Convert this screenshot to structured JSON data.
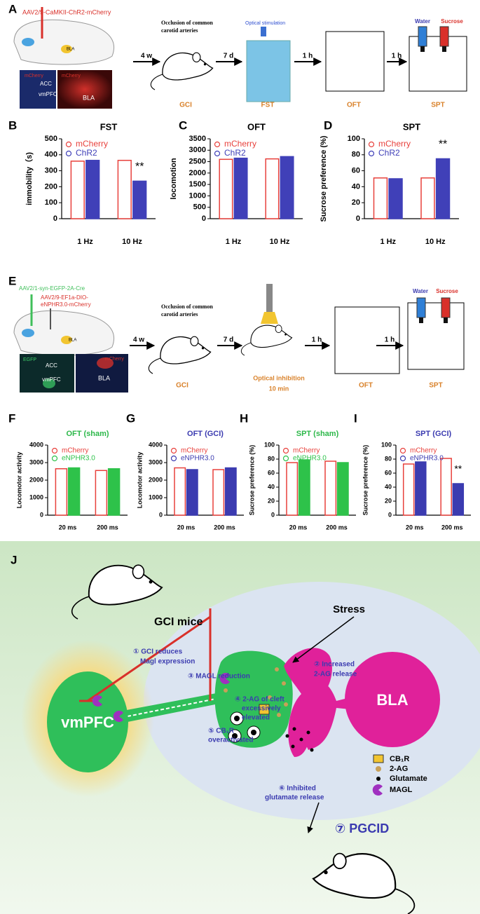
{
  "chart_data": [
    {
      "type": "bar",
      "title": "FST",
      "title_color": "#000000",
      "ylabel": "immobility（s)",
      "categories": [
        "1 Hz",
        "10 Hz"
      ],
      "series": [
        {
          "name": "mCherry",
          "color": "#e8413c",
          "hollow": true,
          "values": [
            360,
            365
          ]
        },
        {
          "name": "ChR2",
          "color": "#4040b8",
          "hollow": false,
          "values": [
            365,
            235
          ]
        }
      ],
      "ylim": [
        0,
        500
      ],
      "yticks": [
        0,
        100,
        200,
        300,
        400,
        500
      ],
      "annotation": "**"
    },
    {
      "type": "bar",
      "title": "OFT",
      "title_color": "#000000",
      "ylabel": "locomotion",
      "categories": [
        "1 Hz",
        "10 Hz"
      ],
      "series": [
        {
          "name": "mCherry",
          "color": "#e8413c",
          "hollow": true,
          "values": [
            2600,
            2620
          ]
        },
        {
          "name": "ChR2",
          "color": "#4040b8",
          "hollow": false,
          "values": [
            2650,
            2720
          ]
        }
      ],
      "ylim": [
        0,
        3500
      ],
      "yticks": [
        0,
        500,
        1000,
        1500,
        2000,
        2500,
        3000,
        3500
      ]
    },
    {
      "type": "bar",
      "title": "SPT",
      "title_color": "#000000",
      "ylabel": "Sucrose preference (%)",
      "categories": [
        "1 Hz",
        "10 Hz"
      ],
      "series": [
        {
          "name": "mCherry",
          "color": "#e8413c",
          "hollow": true,
          "values": [
            51,
            51
          ]
        },
        {
          "name": "ChR2",
          "color": "#4040b8",
          "hollow": false,
          "values": [
            50,
            75
          ]
        }
      ],
      "ylim": [
        0,
        100
      ],
      "yticks": [
        0,
        20,
        40,
        60,
        80,
        100
      ],
      "annotation": "**"
    },
    {
      "type": "bar",
      "title": "OFT (sham)",
      "title_color": "#2db84a",
      "ylabel": "Locomotor activity",
      "categories": [
        "20 ms",
        "200 ms"
      ],
      "series": [
        {
          "name": "mCherry",
          "color": "#e8413c",
          "hollow": true,
          "values": [
            2650,
            2550
          ]
        },
        {
          "name": "eNPHR3.0",
          "color": "#2ec24a",
          "hollow": false,
          "values": [
            2700,
            2650
          ]
        }
      ],
      "ylim": [
        0,
        4000
      ],
      "yticks": [
        0,
        1000,
        2000,
        3000,
        4000
      ]
    },
    {
      "type": "bar",
      "title": "OFT (GCI)",
      "title_color": "#3b3bb0",
      "ylabel": "Locomotor activity",
      "categories": [
        "20 ms",
        "200 ms"
      ],
      "series": [
        {
          "name": "mCherry",
          "color": "#e8413c",
          "hollow": true,
          "values": [
            2700,
            2600
          ]
        },
        {
          "name": "eNPHR3.0",
          "color": "#3b3bb0",
          "hollow": false,
          "values": [
            2600,
            2700
          ]
        }
      ],
      "ylim": [
        0,
        4000
      ],
      "yticks": [
        0,
        1000,
        2000,
        3000,
        4000
      ]
    },
    {
      "type": "bar",
      "title": "SPT (sham)",
      "title_color": "#2db84a",
      "ylabel": "Sucrose preference (%)",
      "categories": [
        "20 ms",
        "200 ms"
      ],
      "series": [
        {
          "name": "mCherry",
          "color": "#e8413c",
          "hollow": true,
          "values": [
            75,
            77
          ]
        },
        {
          "name": "eNPHR3.0",
          "color": "#2ec24a",
          "hollow": false,
          "values": [
            79,
            75
          ]
        }
      ],
      "ylim": [
        0,
        100
      ],
      "yticks": [
        0,
        20,
        40,
        60,
        80,
        100
      ]
    },
    {
      "type": "bar",
      "title": "SPT (GCI)",
      "title_color": "#3b3bb0",
      "ylabel": "Sucrose preference (%)",
      "categories": [
        "20 ms",
        "200 ms"
      ],
      "series": [
        {
          "name": "mCherry",
          "color": "#e8413c",
          "hollow": true,
          "values": [
            73,
            81
          ]
        },
        {
          "name": "eNPHR3.0",
          "color": "#3b3bb0",
          "hollow": false,
          "values": [
            76,
            45
          ]
        }
      ],
      "ylim": [
        0,
        100
      ],
      "yticks": [
        0,
        20,
        40,
        60,
        80,
        100
      ],
      "annotation": "**"
    }
  ],
  "figure": {
    "panel_letters": [
      "A",
      "B",
      "C",
      "D",
      "E",
      "F",
      "G",
      "H",
      "I",
      "J"
    ],
    "panel_a": {
      "virus": "AAV2/9-CaMKII-ChR2-mCherry",
      "brain_label": "BLA",
      "img_labels": [
        "mCherry",
        "ACC",
        "vmPFC",
        "mCherry",
        "BLA"
      ],
      "steps": [
        "4 w",
        "7 d",
        "1 h",
        "1 h"
      ],
      "occlusion": [
        "Occlusion of common",
        "carotid arteries"
      ],
      "stimulation": "Optical stimulation",
      "tests": [
        "GCI",
        "FST",
        "OFT",
        "SPT"
      ],
      "bottles": [
        "Water",
        "Sucrose"
      ]
    },
    "panel_e": {
      "virus": "AAV2/1-syn-EGFP-2A-Cre",
      "virus2": [
        "AAV2/9-EF1a-DIO-",
        "eNPHR3.0-mCherry"
      ],
      "brain_label": "BLA",
      "img_labels": [
        "EGFP",
        "ACC",
        "vmPFC",
        "mCherry",
        "BLA"
      ],
      "steps": [
        "4 w",
        "7 d",
        "1 h",
        "1 h"
      ],
      "occlusion": [
        "Occlusion of common",
        "carotid arteries"
      ],
      "inhibition": [
        "Optical inhibition",
        "10  min"
      ],
      "tests": [
        "GCI",
        "OFT",
        "SPT"
      ],
      "bottles": [
        "Water",
        "Sucrose"
      ]
    },
    "panel_j": {
      "gci_mice": "GCI mice",
      "stress": "Stress",
      "step1": [
        "① GCI reduces",
        "Magl expression"
      ],
      "step2": [
        "② Increased",
        "2-AG release"
      ],
      "step3": "③ MAGL reduction",
      "step4": [
        "④ 2-AG of cleft",
        "excessively",
        "elevated"
      ],
      "step5": [
        "⑤ CB₁R",
        "overactivated"
      ],
      "step6": [
        "⑥ Inhibited",
        "glutamate release"
      ],
      "step7": "⑦ PGCID",
      "vmpfc": "vmPFC",
      "bla": "BLA",
      "legend": [
        "CB₁R",
        "2-AG",
        "Glutamate",
        "MAGL"
      ]
    }
  }
}
